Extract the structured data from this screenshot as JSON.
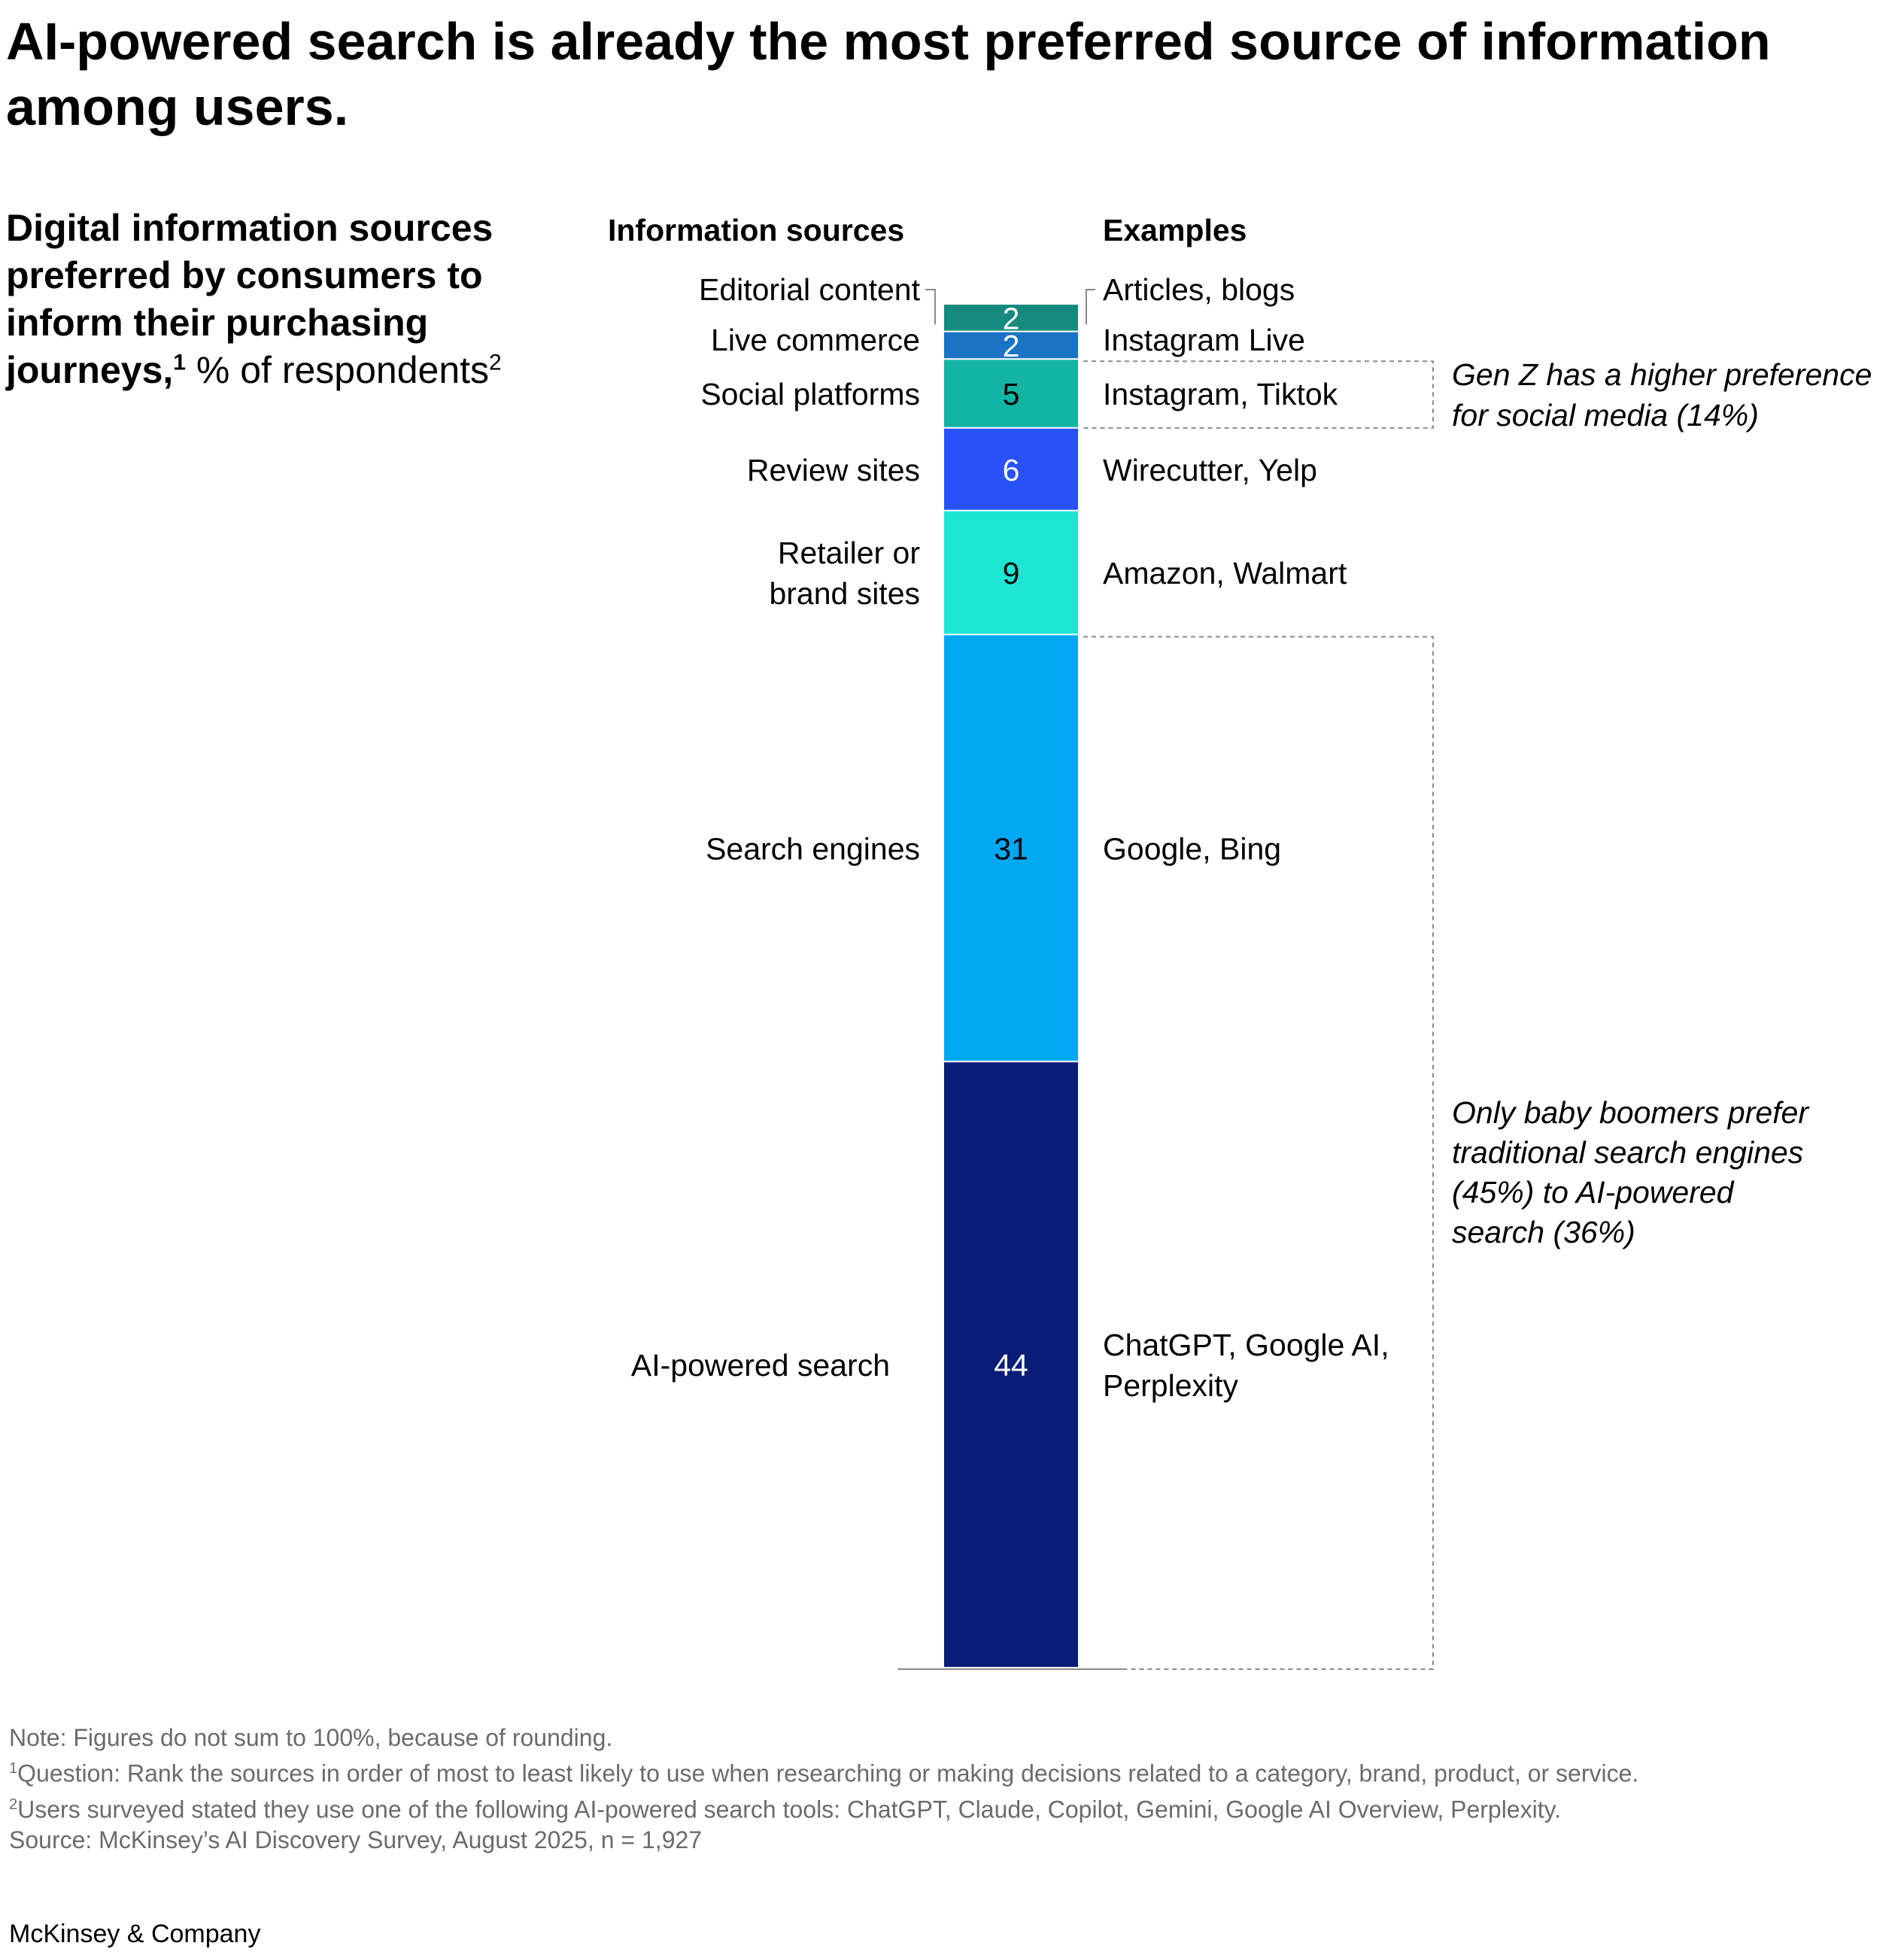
{
  "title": "AI-powered search is already the most preferred source of information among users.",
  "subtitle": {
    "bold": "Digital information sources preferred by consumers to inform their purchasing journeys,",
    "sup1": "1",
    "regular": " % of respondents",
    "sup2": "2"
  },
  "columns": {
    "sources": "Information sources",
    "examples": "Examples"
  },
  "chart_data": {
    "type": "bar",
    "stacked": true,
    "orientation": "vertical",
    "unit": "% of respondents",
    "categories": [
      "Editorial content",
      "Live commerce",
      "Social platforms",
      "Review sites",
      "Retailer or brand sites",
      "Search engines",
      "AI-powered search"
    ],
    "values": [
      2,
      2,
      5,
      6,
      9,
      31,
      44
    ],
    "examples": [
      "Articles, blogs",
      "Instagram Live",
      "Instagram, Tiktok",
      "Wirecutter, Yelp",
      "Amazon, Walmart",
      "Google, Bing",
      "ChatGPT, Google AI, Perplexity"
    ],
    "colors": [
      "#178a80",
      "#1a73c4",
      "#14b4a4",
      "#2951fa",
      "#1ee6d4",
      "#00a8f2",
      "#0a1d76"
    ],
    "value_colors": [
      "#ffffff",
      "#ffffff",
      "#000000",
      "#ffffff",
      "#000000",
      "#000000",
      "#ffffff"
    ],
    "annotations": [
      {
        "applies_to": "Social platforms",
        "text": "Gen Z has a higher preference for social media (14%)"
      },
      {
        "applies_to": "Search engines, AI-powered search",
        "text": "Only baby boomers prefer traditional search engines (45%) to AI-powered search (36%)"
      }
    ]
  },
  "footnotes": {
    "note": "Note: Figures do not sum to 100%, because of rounding.",
    "fn1_mark": "1",
    "fn1": "Question: Rank the sources in order of most to least likely to use when researching or making decisions related to a category, brand, product, or service.",
    "fn2_mark": "2",
    "fn2": "Users surveyed stated they use one of the following AI-powered search tools: ChatGPT, Claude, Copilot, Gemini, Google AI Overview, Perplexity.",
    "source": "Source: McKinsey’s AI Discovery Survey, August 2025, n = 1,927"
  },
  "brand": "McKinsey & Company"
}
